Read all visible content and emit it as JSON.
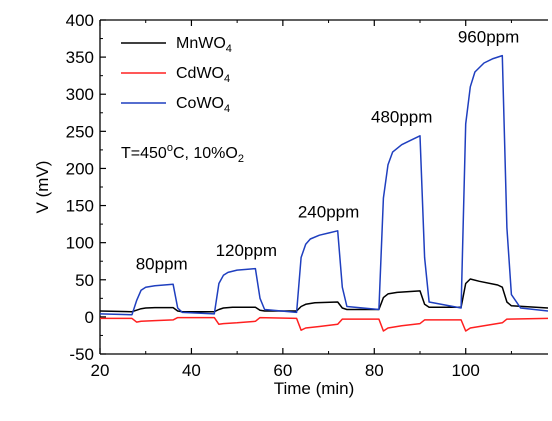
{
  "chart_data": {
    "type": "line",
    "xlabel": "Time (min)",
    "ylabel": "V (mV)",
    "xlim": [
      20,
      118
    ],
    "ylim": [
      -50,
      400
    ],
    "x_ticks": [
      20,
      40,
      60,
      80,
      100
    ],
    "y_ticks": [
      -50,
      0,
      50,
      100,
      150,
      200,
      250,
      300,
      350,
      400
    ],
    "grid": false,
    "legend_position": "top-left",
    "condition": {
      "prefix": "T=450",
      "degree": "o",
      "mid": "C, 10%O",
      "sub": "2"
    },
    "legend": [
      {
        "base": "MnWO",
        "sub": "4"
      },
      {
        "base": "CdWO",
        "sub": "4"
      },
      {
        "base": "CoWO",
        "sub": "4"
      }
    ],
    "annotations": [
      {
        "text": "80ppm",
        "x": 33.5,
        "y": 64
      },
      {
        "text": "120ppm",
        "x": 52,
        "y": 82
      },
      {
        "text": "240ppm",
        "x": 70,
        "y": 134
      },
      {
        "text": "480ppm",
        "x": 86,
        "y": 262
      },
      {
        "text": "960ppm",
        "x": 105,
        "y": 370
      }
    ],
    "series": [
      {
        "name": "MnWO4",
        "color": "#000000",
        "points": [
          [
            20,
            8
          ],
          [
            27,
            7
          ],
          [
            28,
            9
          ],
          [
            29,
            11
          ],
          [
            30,
            12
          ],
          [
            32,
            12.5
          ],
          [
            36,
            12.5
          ],
          [
            37,
            8
          ],
          [
            38,
            7
          ],
          [
            45,
            7
          ],
          [
            46,
            10
          ],
          [
            47,
            12
          ],
          [
            49,
            13
          ],
          [
            54,
            13
          ],
          [
            55,
            9
          ],
          [
            56,
            8
          ],
          [
            63,
            8
          ],
          [
            64,
            14
          ],
          [
            65,
            17
          ],
          [
            67,
            19
          ],
          [
            72,
            20
          ],
          [
            73,
            12
          ],
          [
            74,
            10
          ],
          [
            81,
            10
          ],
          [
            82,
            26
          ],
          [
            83,
            31
          ],
          [
            85,
            33
          ],
          [
            90,
            35
          ],
          [
            91,
            17
          ],
          [
            92,
            13
          ],
          [
            99,
            13
          ],
          [
            100,
            45
          ],
          [
            101,
            51
          ],
          [
            103,
            48
          ],
          [
            107,
            43
          ],
          [
            108,
            40
          ],
          [
            109,
            20
          ],
          [
            110,
            15
          ],
          [
            118,
            12
          ]
        ]
      },
      {
        "name": "CdWO4",
        "color": "#ff2020",
        "points": [
          [
            20,
            -2
          ],
          [
            27,
            -2
          ],
          [
            28,
            -7
          ],
          [
            29,
            -6
          ],
          [
            32,
            -5
          ],
          [
            36,
            -4
          ],
          [
            37,
            -1
          ],
          [
            45,
            -1
          ],
          [
            46,
            -10
          ],
          [
            47,
            -9
          ],
          [
            50,
            -8
          ],
          [
            54,
            -6
          ],
          [
            55,
            -1
          ],
          [
            63,
            -2
          ],
          [
            64,
            -18
          ],
          [
            65,
            -15
          ],
          [
            68,
            -13
          ],
          [
            72,
            -10
          ],
          [
            73,
            -3
          ],
          [
            81,
            -3
          ],
          [
            82,
            -19
          ],
          [
            83,
            -15
          ],
          [
            86,
            -12
          ],
          [
            90,
            -9
          ],
          [
            91,
            -4
          ],
          [
            99,
            -4
          ],
          [
            100,
            -19
          ],
          [
            101,
            -15
          ],
          [
            104,
            -12
          ],
          [
            108,
            -8
          ],
          [
            109,
            -3
          ],
          [
            118,
            -2
          ]
        ]
      },
      {
        "name": "CoWO4",
        "color": "#1f3fbf",
        "points": [
          [
            20,
            4
          ],
          [
            27,
            3
          ],
          [
            28,
            22
          ],
          [
            29,
            36
          ],
          [
            30,
            40
          ],
          [
            32,
            42
          ],
          [
            34,
            43
          ],
          [
            36,
            44
          ],
          [
            37,
            12
          ],
          [
            38,
            6
          ],
          [
            45,
            4
          ],
          [
            46,
            45
          ],
          [
            47,
            56
          ],
          [
            48,
            60
          ],
          [
            50,
            63
          ],
          [
            52,
            64
          ],
          [
            54,
            65
          ],
          [
            55,
            25
          ],
          [
            56,
            10
          ],
          [
            63,
            6
          ],
          [
            64,
            80
          ],
          [
            65,
            98
          ],
          [
            66,
            105
          ],
          [
            68,
            110
          ],
          [
            70,
            113
          ],
          [
            72,
            116
          ],
          [
            73,
            40
          ],
          [
            74,
            14
          ],
          [
            81,
            10
          ],
          [
            82,
            160
          ],
          [
            83,
            205
          ],
          [
            84,
            222
          ],
          [
            86,
            232
          ],
          [
            88,
            238
          ],
          [
            90,
            244
          ],
          [
            91,
            80
          ],
          [
            92,
            20
          ],
          [
            99,
            12
          ],
          [
            100,
            260
          ],
          [
            101,
            310
          ],
          [
            102,
            330
          ],
          [
            104,
            342
          ],
          [
            106,
            348
          ],
          [
            108,
            352
          ],
          [
            109,
            120
          ],
          [
            110,
            30
          ],
          [
            112,
            12
          ],
          [
            118,
            8
          ]
        ]
      }
    ]
  }
}
